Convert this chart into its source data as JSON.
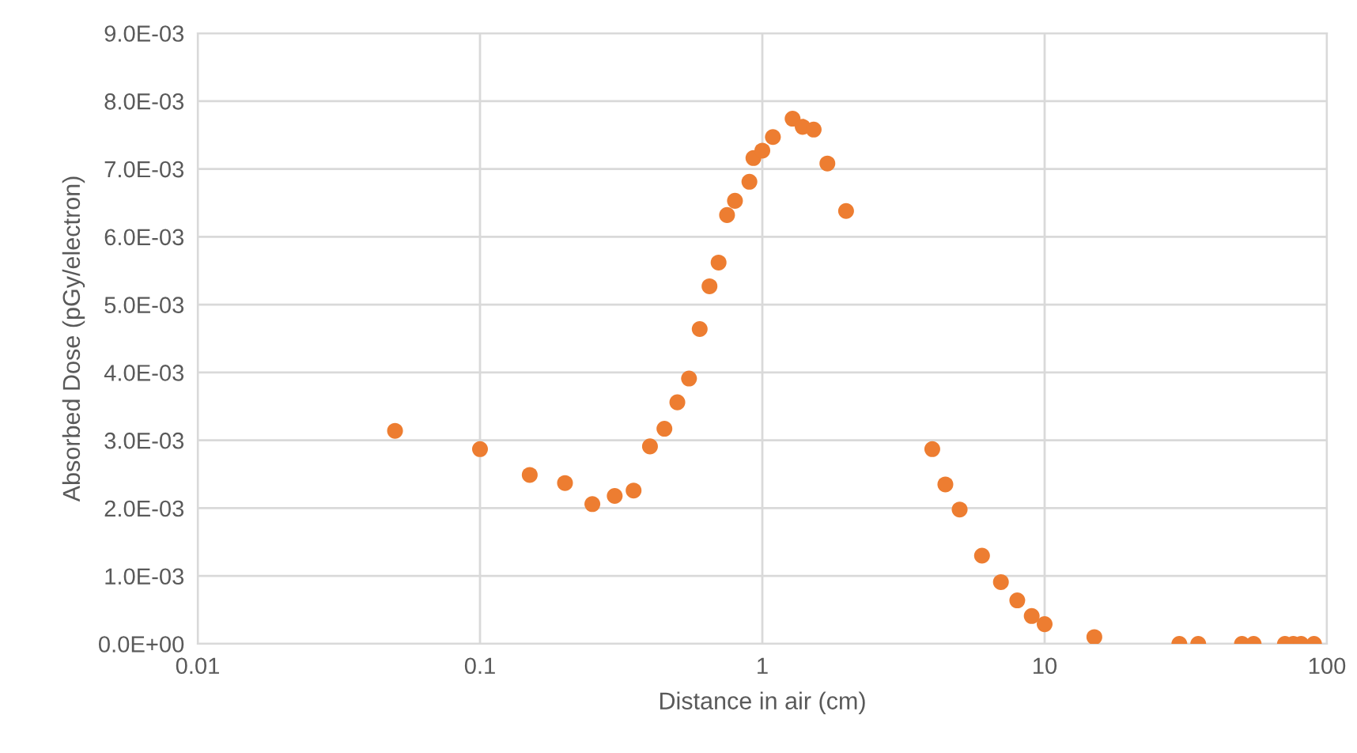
{
  "chart_data": {
    "type": "scatter",
    "xlabel": "Distance in air (cm)",
    "ylabel": "Absorbed Dose (pGy/electron)",
    "log": "x",
    "xlim": [
      0.01,
      100
    ],
    "xticks": [
      0.01,
      0.1,
      1,
      10,
      100
    ],
    "ylim": [
      0,
      0.009
    ],
    "yticks": [
      {
        "value": 0,
        "label": "0.0E+00"
      },
      {
        "value": 0.001,
        "label": "1.0E-03"
      },
      {
        "value": 0.002,
        "label": "2.0E-03"
      },
      {
        "value": 0.003,
        "label": "3.0E-03"
      },
      {
        "value": 0.004,
        "label": "4.0E-03"
      },
      {
        "value": 0.005,
        "label": "5.0E-03"
      },
      {
        "value": 0.006,
        "label": "6.0E-03"
      },
      {
        "value": 0.007,
        "label": "7.0E-03"
      },
      {
        "value": 0.008,
        "label": "8.0E-03"
      },
      {
        "value": 0.009,
        "label": "9.0E-03"
      }
    ],
    "grid": true,
    "marker": "circle",
    "series": [
      {
        "color": "#ed7d31",
        "x": [
          0.05,
          0.1,
          0.15,
          0.2,
          0.25,
          0.3,
          0.35,
          0.4,
          0.45,
          0.5,
          0.55,
          0.6,
          0.65,
          0.7,
          0.75,
          0.8,
          0.9,
          0.93,
          1.0,
          1.09,
          1.28,
          1.39,
          1.52,
          1.7,
          1.98,
          4,
          4.45,
          5,
          6,
          7,
          8,
          9,
          10,
          15,
          30,
          35,
          50,
          55,
          71,
          76,
          81,
          90
        ],
        "values": [
          0.00314,
          0.00287,
          0.00249,
          0.00237,
          0.00206,
          0.00218,
          0.00226,
          0.00291,
          0.00317,
          0.00356,
          0.00391,
          0.00464,
          0.00527,
          0.00562,
          0.00632,
          0.00653,
          0.00681,
          0.00716,
          0.00727,
          0.00747,
          0.00774,
          0.00762,
          0.00758,
          0.00708,
          0.00638,
          0.00287,
          0.00235,
          0.00198,
          0.0013,
          0.00091,
          0.00064,
          0.00041,
          0.00029,
          0.0001,
          0,
          0,
          0,
          0,
          0,
          0,
          0,
          0
        ]
      }
    ]
  }
}
